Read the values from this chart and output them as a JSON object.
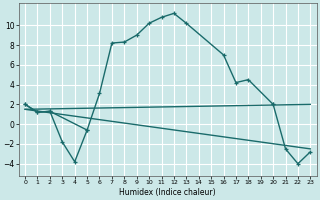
{
  "title": "",
  "xlabel": "Humidex (Indice chaleur)",
  "background_color": "#cce8e8",
  "grid_color": "#ffffff",
  "line_color": "#1a6b6b",
  "xlim": [
    -0.5,
    23.5
  ],
  "ylim": [
    -5.2,
    12.2
  ],
  "yticks": [
    -4,
    -2,
    0,
    2,
    4,
    6,
    8,
    10
  ],
  "xticks": [
    0,
    1,
    2,
    3,
    4,
    5,
    6,
    7,
    8,
    9,
    10,
    11,
    12,
    13,
    14,
    15,
    16,
    17,
    18,
    19,
    20,
    21,
    22,
    23
  ],
  "curve1_x": [
    0,
    1,
    2,
    5,
    6,
    7,
    8,
    9,
    10,
    11,
    12,
    13,
    16,
    17,
    18,
    20
  ],
  "curve1_y": [
    2.0,
    1.2,
    1.3,
    -0.6,
    3.1,
    8.2,
    8.3,
    9.0,
    10.2,
    10.8,
    11.2,
    10.2,
    7.0,
    4.2,
    4.5,
    2.0
  ],
  "curve2_x": [
    0,
    1,
    2,
    3,
    4,
    5
  ],
  "curve2_y": [
    2.0,
    1.2,
    1.3,
    -1.8,
    -3.8,
    -0.6
  ],
  "curve3_x": [
    0,
    23
  ],
  "curve3_y": [
    1.5,
    -2.5
  ],
  "curve4_x": [
    0,
    23
  ],
  "curve4_y": [
    1.5,
    2.0
  ],
  "curve5_x": [
    20,
    21,
    22,
    23
  ],
  "curve5_y": [
    2.0,
    -2.5,
    -4.0,
    -2.8
  ]
}
